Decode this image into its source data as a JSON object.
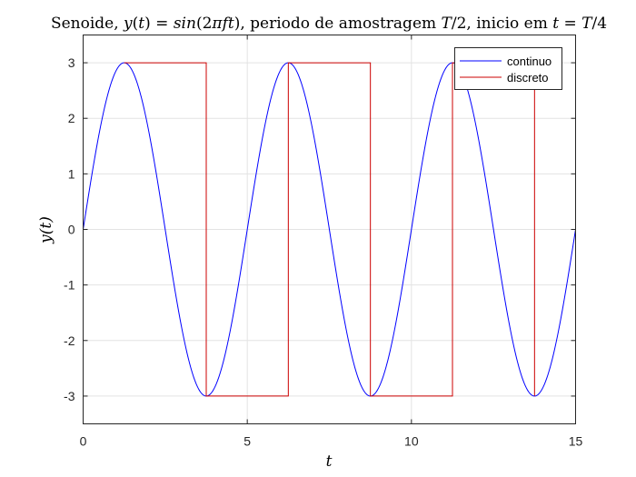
{
  "chart_data": {
    "type": "line",
    "title_parts": [
      {
        "text": "Senoide, ",
        "italic": false
      },
      {
        "text": "y",
        "italic": true
      },
      {
        "text": "(",
        "italic": false
      },
      {
        "text": "t",
        "italic": true
      },
      {
        "text": ") = ",
        "italic": false
      },
      {
        "text": "sin",
        "italic": true
      },
      {
        "text": "(2",
        "italic": false
      },
      {
        "text": "πft",
        "italic": true
      },
      {
        "text": "), periodo de amostragem ",
        "italic": false
      },
      {
        "text": "T",
        "italic": true
      },
      {
        "text": "/2, inicio em ",
        "italic": false
      },
      {
        "text": "t",
        "italic": true
      },
      {
        "text": " = ",
        "italic": false
      },
      {
        "text": "T",
        "italic": true
      },
      {
        "text": "/4",
        "italic": false
      }
    ],
    "xlabel": "t",
    "ylabel": "y(t)",
    "xlim": [
      0,
      15
    ],
    "ylim": [
      -3.5,
      3.5
    ],
    "xticks": [
      0,
      5,
      10,
      15
    ],
    "xtick_labels": [
      "0",
      "5",
      "10",
      "15"
    ],
    "yticks": [
      -3,
      -2,
      -1,
      0,
      1,
      2,
      3
    ],
    "ytick_labels": [
      "-3",
      "-2",
      "-1",
      "0",
      "1",
      "2",
      "3"
    ],
    "grid": true,
    "legend_position": "top-right",
    "series": [
      {
        "name": "continuo",
        "color": "#0000ff",
        "style": "line",
        "amplitude": 3,
        "period": 5,
        "x": [
          0,
          0.25,
          0.5,
          0.75,
          1.0,
          1.25,
          1.5,
          1.75,
          2.0,
          2.25,
          2.5,
          2.75,
          3.0,
          3.25,
          3.5,
          3.75,
          4.0,
          4.25,
          4.5,
          4.75,
          5.0,
          5.25,
          5.5,
          5.75,
          6.0,
          6.25,
          6.5,
          6.75,
          7.0,
          7.25,
          7.5,
          7.75,
          8.0,
          8.25,
          8.5,
          8.75,
          9.0,
          9.25,
          9.5,
          9.75,
          10.0,
          10.25,
          10.5,
          10.75,
          11.0,
          11.25,
          11.5,
          11.75,
          12.0,
          12.25,
          12.5,
          12.75,
          13.0,
          13.25,
          13.5,
          13.75,
          14.0,
          14.25,
          14.5,
          14.75,
          15.0
        ],
        "y": [
          0,
          0.927,
          1.763,
          2.427,
          2.853,
          3.0,
          2.853,
          2.427,
          1.763,
          0.927,
          0,
          -0.927,
          -1.763,
          -2.427,
          -2.853,
          -3.0,
          -2.853,
          -2.427,
          -1.763,
          -0.927,
          0,
          0.927,
          1.763,
          2.427,
          2.853,
          3.0,
          2.853,
          2.427,
          1.763,
          0.927,
          0,
          -0.927,
          -1.763,
          -2.427,
          -2.853,
          -3.0,
          -2.853,
          -2.427,
          -1.763,
          -0.927,
          0,
          0.927,
          1.763,
          2.427,
          2.853,
          3.0,
          2.853,
          2.427,
          1.763,
          0.927,
          0,
          -0.927,
          -1.763,
          -2.427,
          -2.853,
          -3.0,
          -2.853,
          -2.427,
          -1.763,
          -0.927,
          0
        ]
      },
      {
        "name": "discreto",
        "color": "#cc0000",
        "style": "stairs",
        "x": [
          1.25,
          3.75,
          6.25,
          8.75,
          11.25,
          13.75
        ],
        "y": [
          3,
          -3,
          3,
          -3,
          3,
          -3
        ]
      }
    ]
  }
}
